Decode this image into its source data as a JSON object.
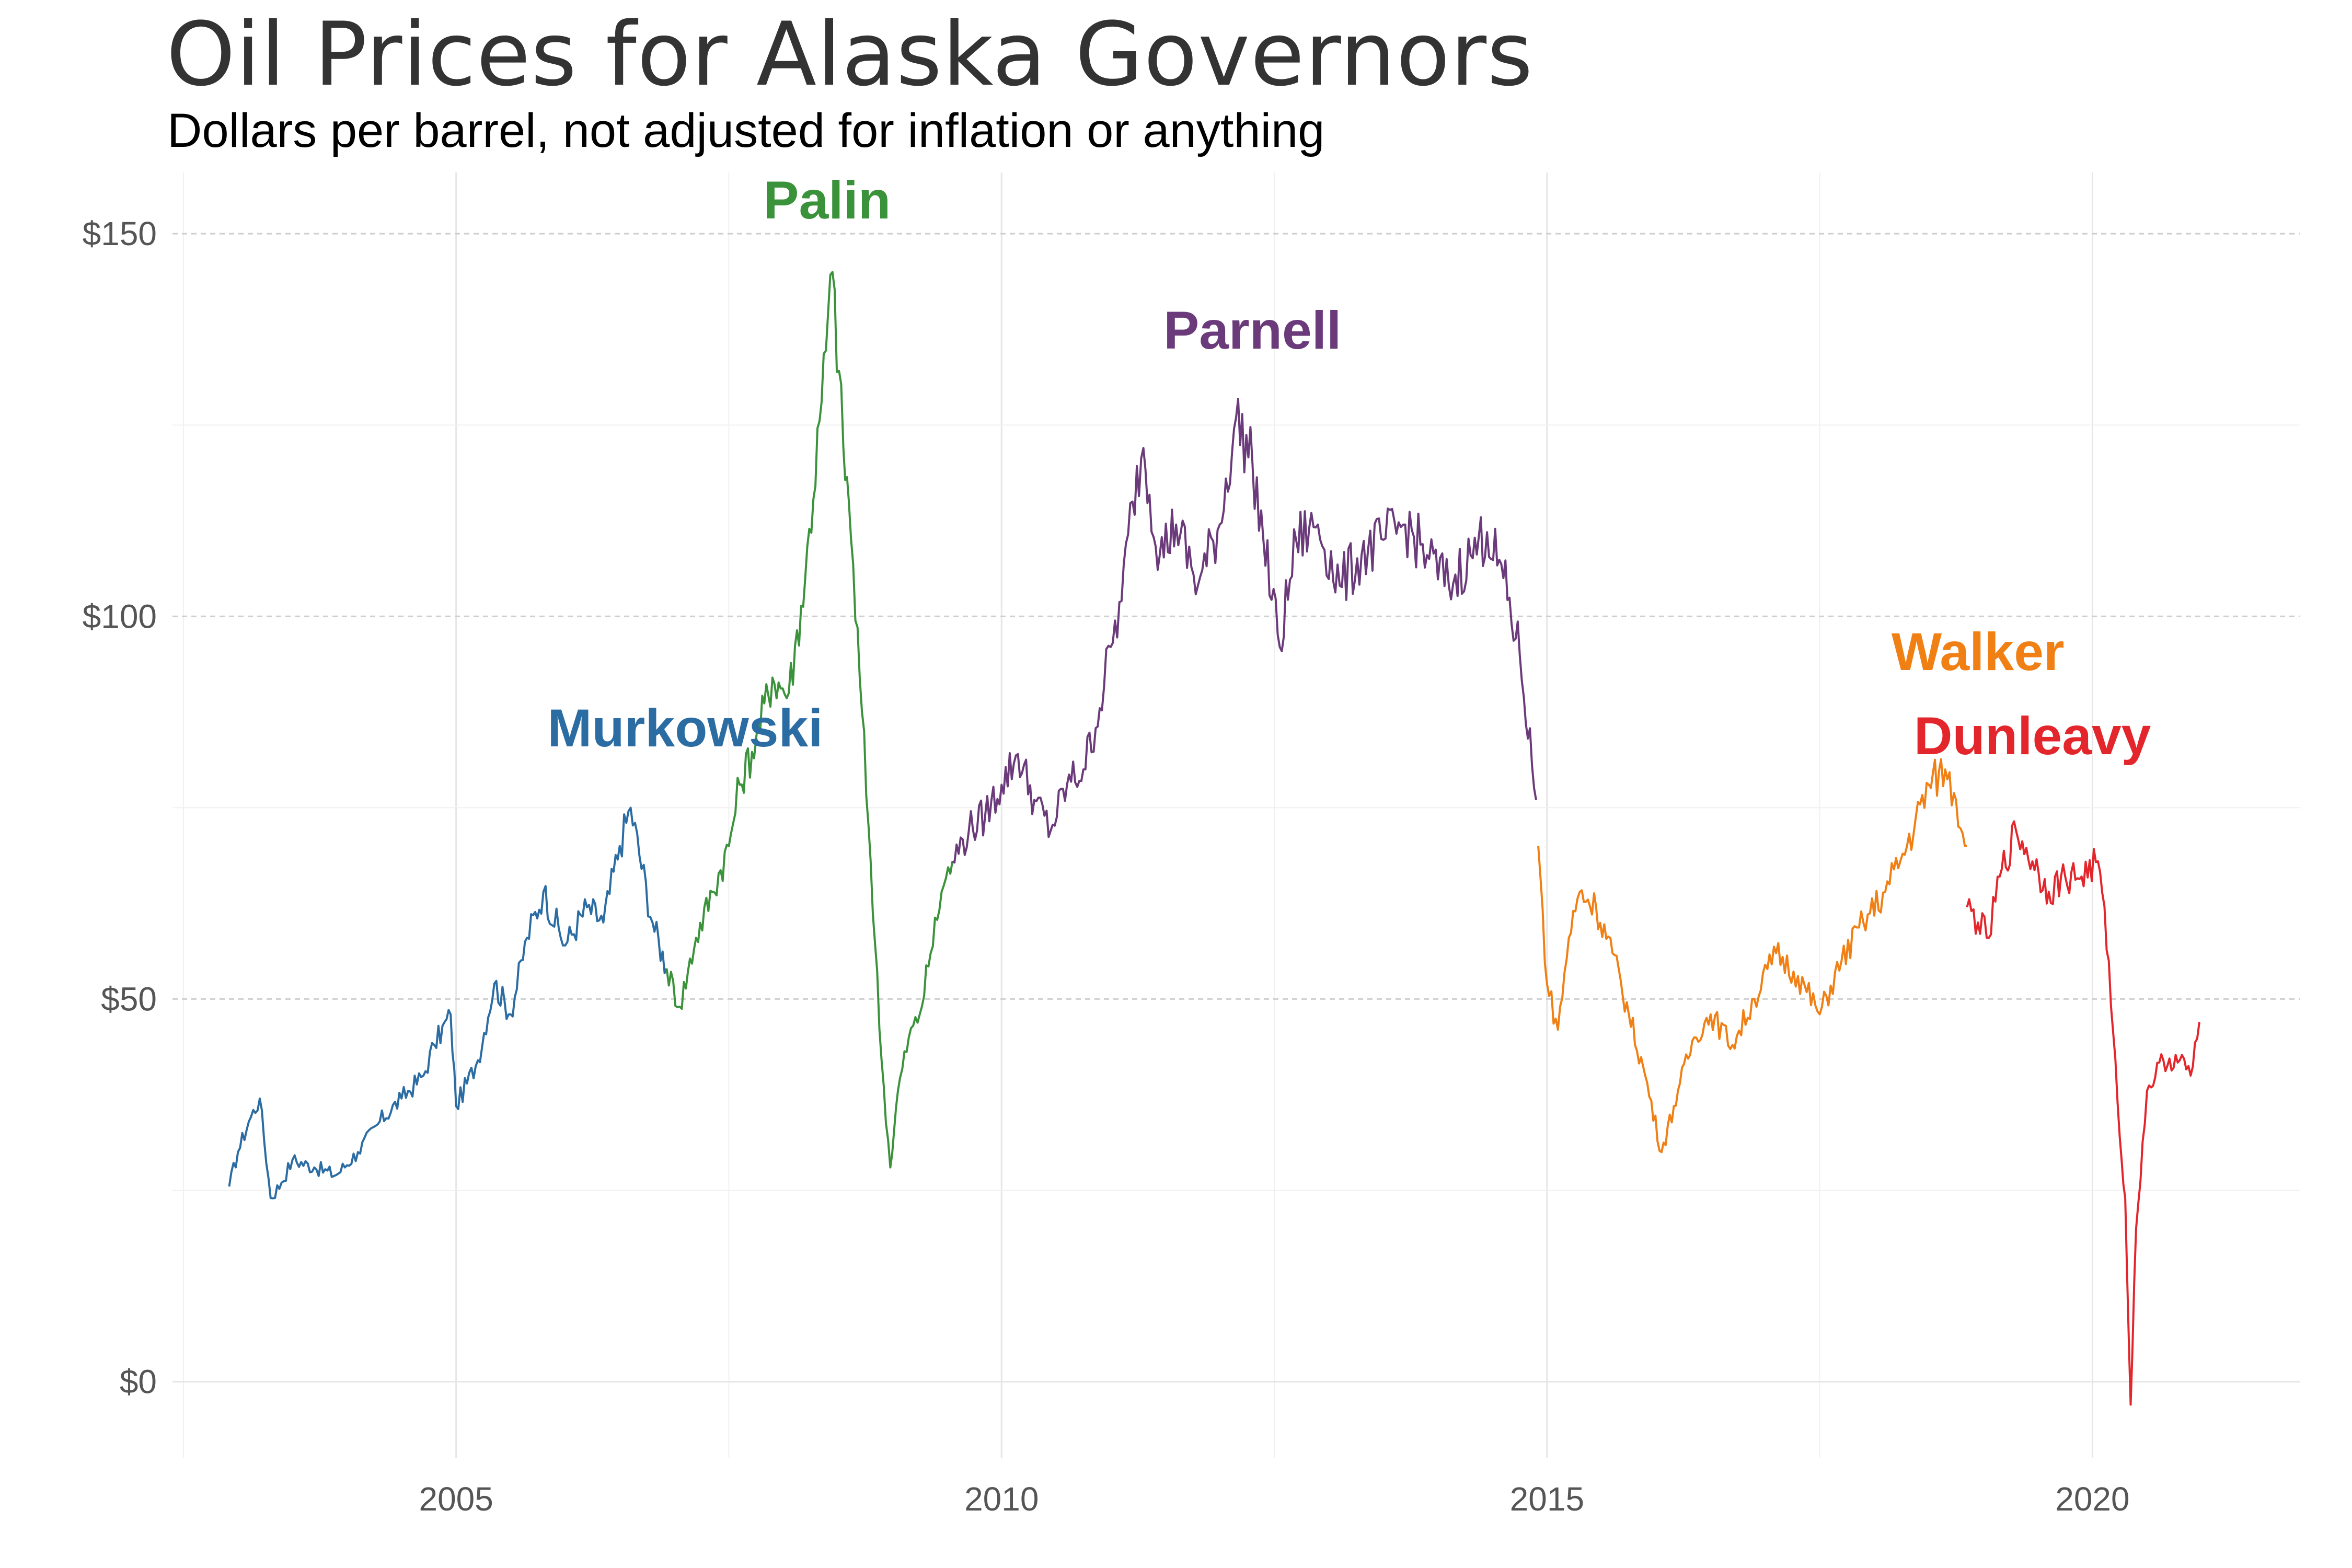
{
  "title": "Oil Prices for Alaska Governors",
  "subtitle": "Dollars per barrel, not adjusted for inflation or anything",
  "chart_data": {
    "type": "line",
    "title": "Oil Prices for Alaska Governors",
    "subtitle": "Dollars per barrel, not adjusted for inflation or anything",
    "xlabel": "",
    "ylabel": "",
    "xlim": [
      2002.4,
      2021.9
    ],
    "ylim": [
      -10,
      158
    ],
    "x_ticks": [
      2005,
      2010,
      2015,
      2020
    ],
    "x_tick_labels": [
      "2005",
      "2010",
      "2015",
      "2020"
    ],
    "y_ticks": [
      0,
      50,
      100,
      150
    ],
    "y_tick_labels": [
      "$0",
      "$50",
      "$100",
      "$150"
    ],
    "grid": true,
    "legend": "none (direct labels)",
    "series": [
      {
        "name": "Murkowski",
        "color": "#2b6ca3",
        "label_at": [
          2007.1,
          83
        ],
        "x": [
          2002.92,
          2003.0,
          2003.1,
          2003.2,
          2003.3,
          2003.4,
          2003.5,
          2003.7,
          2003.9,
          2004.1,
          2004.3,
          2004.5,
          2004.7,
          2004.8,
          2004.95,
          2005.0,
          2005.2,
          2005.35,
          2005.5,
          2005.65,
          2005.8,
          2006.0,
          2006.2,
          2006.35,
          2006.5,
          2006.6,
          2006.8,
          2006.93
        ],
        "y": [
          25.5,
          30,
          34,
          37,
          24,
          26,
          29,
          28,
          27,
          30,
          34,
          37,
          40,
          44,
          48,
          36,
          42,
          52,
          48,
          58,
          64,
          57,
          62,
          60,
          70,
          75,
          60,
          54
        ]
      },
      {
        "name": "Palin",
        "color": "#3a923a",
        "label_at": [
          2008.4,
          152
        ],
        "x": [
          2006.93,
          2007.05,
          2007.2,
          2007.35,
          2007.5,
          2007.6,
          2007.75,
          2007.9,
          2008.05,
          2008.2,
          2008.35,
          2008.45,
          2008.55,
          2008.6,
          2008.7,
          2008.8,
          2008.9,
          2008.98,
          2009.05,
          2009.15,
          2009.25,
          2009.35,
          2009.45,
          2009.55
        ],
        "y": [
          54,
          49,
          58,
          64,
          70,
          78,
          84,
          92,
          90,
          105,
          128,
          145,
          122,
          115,
          92,
          68,
          42,
          28,
          38,
          45,
          48,
          56,
          64,
          68
        ]
      },
      {
        "name": "Parnell",
        "color": "#6a3a7a",
        "label_at": [
          2012.3,
          135
        ],
        "x": [
          2009.55,
          2009.7,
          2009.85,
          2010.0,
          2010.15,
          2010.3,
          2010.45,
          2010.6,
          2010.75,
          2010.9,
          2011.0,
          2011.1,
          2011.2,
          2011.3,
          2011.45,
          2011.6,
          2011.8,
          2012.0,
          2012.15,
          2012.3,
          2012.4,
          2012.55,
          2012.7,
          2012.9,
          2013.1,
          2013.3,
          2013.5,
          2013.7,
          2013.9,
          2014.1,
          2014.3,
          2014.45,
          2014.6,
          2014.75,
          2014.9
        ],
        "y": [
          68,
          72,
          74,
          78,
          82,
          76,
          72,
          78,
          80,
          88,
          96,
          102,
          115,
          122,
          108,
          112,
          104,
          112,
          126,
          120,
          110,
          96,
          110,
          112,
          104,
          108,
          110,
          112,
          108,
          104,
          108,
          111,
          105,
          95,
          76
        ]
      },
      {
        "name": "Walker",
        "color": "#f07f14",
        "label_at": [
          2018.95,
          93
        ],
        "x": [
          2014.92,
          2015.0,
          2015.1,
          2015.2,
          2015.3,
          2015.45,
          2015.6,
          2015.75,
          2015.9,
          2016.05,
          2016.2,
          2016.35,
          2016.5,
          2016.7,
          2016.9,
          2017.1,
          2017.3,
          2017.5,
          2017.7,
          2017.9,
          2018.1,
          2018.3,
          2018.5,
          2018.65,
          2018.75,
          2018.85
        ],
        "y": [
          70,
          52,
          46,
          58,
          64,
          62,
          56,
          48,
          40,
          30,
          38,
          45,
          48,
          44,
          50,
          56,
          53,
          48,
          55,
          60,
          64,
          70,
          78,
          80,
          76,
          70
        ]
      },
      {
        "name": "Dunleavy",
        "color": "#e3262b",
        "label_at": [
          2019.45,
          82
        ],
        "x": [
          2018.85,
          2018.95,
          2019.05,
          2019.15,
          2019.3,
          2019.45,
          2019.6,
          2019.75,
          2019.9,
          2020.05,
          2020.15,
          2020.25,
          2020.3,
          2020.35,
          2020.4,
          2020.5,
          2020.65,
          2020.8,
          2020.9,
          2020.98
        ],
        "y": [
          62,
          60,
          58,
          66,
          72,
          68,
          64,
          66,
          66,
          68,
          55,
          32,
          24,
          -3,
          20,
          38,
          42,
          42,
          40,
          47
        ]
      }
    ]
  }
}
